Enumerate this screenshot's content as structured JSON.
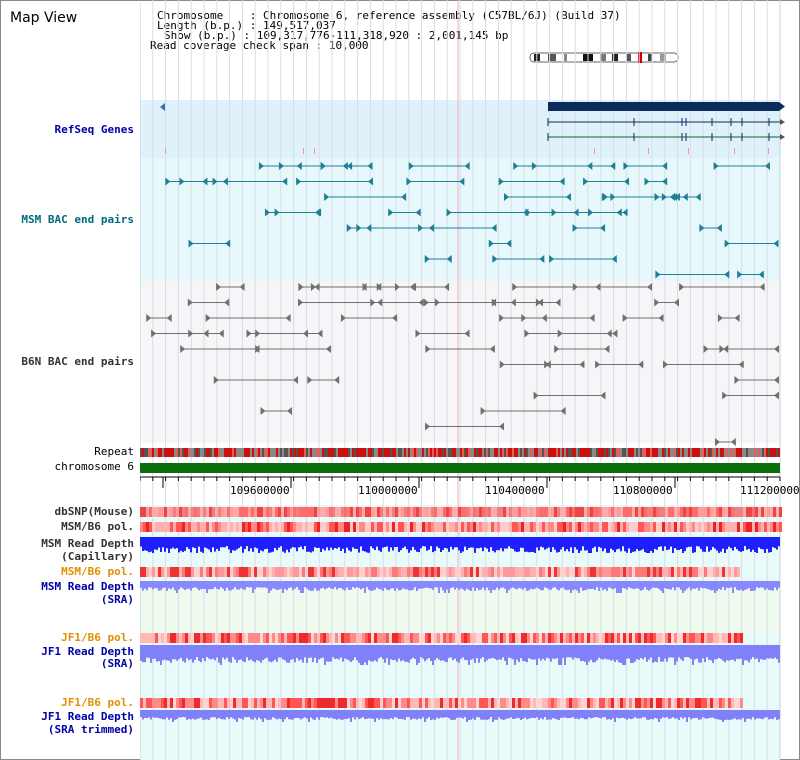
{
  "title": "Map View",
  "header": {
    "chromosome_key": "Chromosome",
    "chromosome_val": ": Chromosome 6, reference assembly (C57BL/6J) (Build 37)",
    "length_key": "Length (b.p.)",
    "length_val": ": 149,517,037",
    "show_key": "Show (b.p.)",
    "show_val": ": 109,317,776-111,318,920 : 2,001,145 bp",
    "coverage_key": "Read coverage check span",
    "coverage_val": ": 10,000"
  },
  "tracks": {
    "refseq": "RefSeq Genes",
    "msm_bac": "MSM BAC end pairs",
    "b6n_bac": "B6N BAC end pairs",
    "repeat": "Repeat",
    "chromosome": "chromosome 6",
    "dbsnp": "dbSNP(Mouse)",
    "msm_b6_pol": "MSM/B6 pol.",
    "msm_read_depth_cap_1": "MSM Read Depth",
    "msm_read_depth_cap_2": "(Capillary)",
    "msm_b6_pol_2": "MSM/B6 pol.",
    "msm_read_depth_sra_1": "MSM Read Depth",
    "msm_read_depth_sra_2": "(SRA)",
    "jf1_b6_pol": "JF1/B6 pol.",
    "jf1_read_depth_sra_1": "JF1 Read Depth",
    "jf1_read_depth_sra_2": "(SRA)",
    "jf1_b6_pol_2": "JF1/B6 pol.",
    "jf1_read_depth_trim_1": "JF1 Read Depth",
    "jf1_read_depth_trim_2": "(SRA trimmed)"
  },
  "axis_ticks": [
    "109600000",
    "110000000",
    "110400000",
    "110800000",
    "111200000"
  ],
  "colors": {
    "refseq_bg": "#dff1fb",
    "msm_bg": "#e6f8fb",
    "b6n_bg": "#f6f6f8",
    "chromosome_bar": "#0b6e0b",
    "gene_bar": "#0a2c5a",
    "depth_blue": "#1e1eff",
    "depth_light": "#8888ff",
    "pol_red": "#ee2222"
  }
}
